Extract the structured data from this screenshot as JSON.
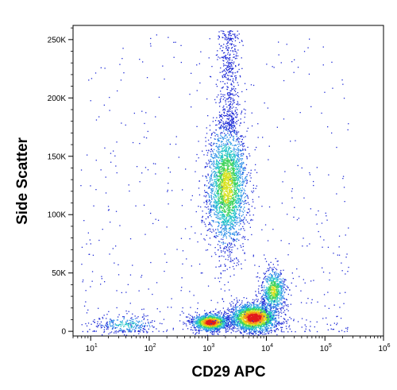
{
  "chart_data": {
    "type": "scatter",
    "xlabel": "CD29 APC",
    "ylabel": "Side Scatter",
    "x_scale": "log",
    "xlim": [
      5,
      1000000
    ],
    "ylim": [
      -4000,
      262144
    ],
    "grid": false,
    "x_tick_labels": [
      {
        "base": "10",
        "exp": "1",
        "value": 10
      },
      {
        "base": "10",
        "exp": "2",
        "value": 100
      },
      {
        "base": "10",
        "exp": "3",
        "value": 1000
      },
      {
        "base": "10",
        "exp": "4",
        "value": 10000
      },
      {
        "base": "10",
        "exp": "5",
        "value": 100000
      },
      {
        "base": "10",
        "exp": "6",
        "value": 1000000
      }
    ],
    "y_tick_labels": [
      {
        "label": "0",
        "value": 0
      },
      {
        "label": "50K",
        "value": 50000
      },
      {
        "label": "100K",
        "value": 100000
      },
      {
        "label": "150K",
        "value": 150000
      },
      {
        "label": "200K",
        "value": 200000
      },
      {
        "label": "250K",
        "value": 250000
      }
    ],
    "density_colormap": [
      "#1f2bd6",
      "#2f8fe8",
      "#22c4c9",
      "#3fd35a",
      "#d8e21f",
      "#f59a17",
      "#e21b1b"
    ],
    "populations": [
      {
        "x_center": 2100,
        "x_log_sd": 0.17,
        "y_center": 125000,
        "y_sd": 26000,
        "peak_density": 0.62
      },
      {
        "x_center": 1100,
        "x_log_sd": 0.15,
        "y_center": 8000,
        "y_sd": 3500,
        "peak_density": 1.0
      },
      {
        "x_center": 6000,
        "x_log_sd": 0.2,
        "y_center": 12000,
        "y_sd": 6000,
        "peak_density": 1.0
      },
      {
        "x_center": 13000,
        "x_log_sd": 0.1,
        "y_center": 35000,
        "y_sd": 9000,
        "peak_density": 0.6
      },
      {
        "x_center": 40,
        "x_log_sd": 0.25,
        "y_center": 6000,
        "y_sd": 4000,
        "peak_density": 0.3
      }
    ]
  }
}
